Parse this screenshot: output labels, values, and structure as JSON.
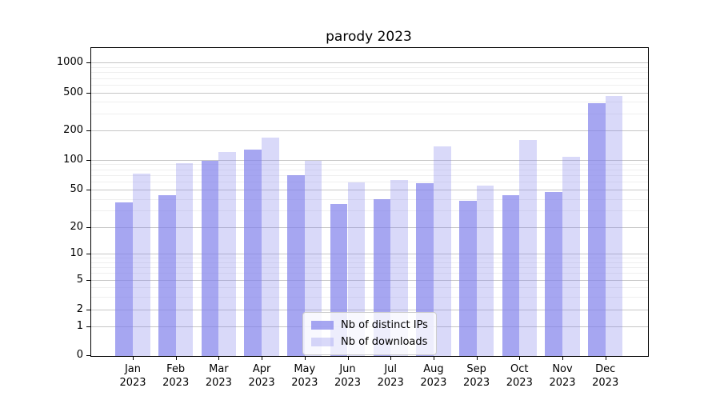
{
  "title": "parody 2023",
  "colors": {
    "bar_base": "#8080EB",
    "bar_ips_alpha": 0.7,
    "bar_downloads_alpha": 0.3,
    "bar_ips_rgba": "rgba(128,128,235,0.7)",
    "bar_downloads_rgba": "rgba(128,128,235,0.3)",
    "grid_major": "#C6C6C6",
    "grid_minor": "#EFEFEF",
    "axis": "#000000",
    "legend_border": "#CCCCCC"
  },
  "legend": {
    "items": [
      {
        "label": "Nb of distinct IPs",
        "series": "ips"
      },
      {
        "label": "Nb of downloads",
        "series": "downloads"
      }
    ]
  },
  "chart_data": {
    "type": "bar",
    "title": "parody 2023",
    "categories": [
      "Jan 2023",
      "Feb 2023",
      "Mar 2023",
      "Apr 2023",
      "May 2023",
      "Jun 2023",
      "Jul 2023",
      "Aug 2023",
      "Sep 2023",
      "Oct 2023",
      "Nov 2023",
      "Dec 2023"
    ],
    "series": [
      {
        "name": "Nb of distinct IPs",
        "values": [
          37,
          44,
          97,
          127,
          70,
          35,
          40,
          58,
          38,
          44,
          47,
          385
        ]
      },
      {
        "name": "Nb of downloads",
        "values": [
          72,
          92,
          121,
          170,
          98,
          59,
          62,
          137,
          55,
          160,
          107,
          460
        ]
      }
    ],
    "xlabel": "",
    "ylabel": "",
    "yscale": "symlog",
    "y_ticks": [
      0,
      1,
      2,
      5,
      10,
      20,
      50,
      100,
      200,
      500,
      1000
    ],
    "y_minor_ticks": [
      3,
      4,
      6,
      7,
      8,
      9,
      30,
      40,
      60,
      70,
      80,
      90,
      300,
      400,
      600,
      700,
      800,
      900
    ],
    "ylim": [
      0,
      1400
    ],
    "grid": "horizontal major+minor",
    "legend_position": "lower center"
  }
}
